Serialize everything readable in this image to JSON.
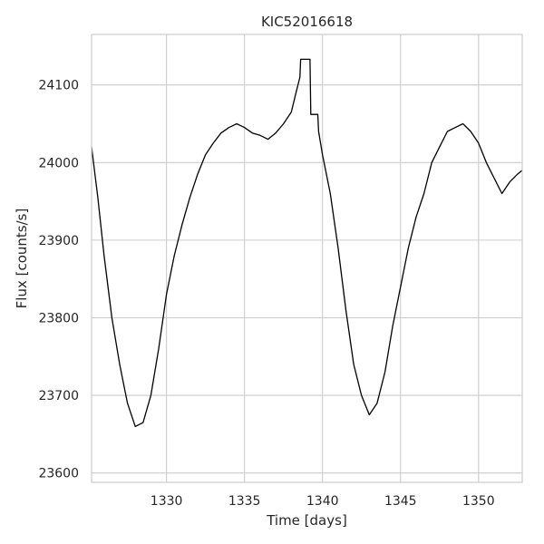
{
  "chart_data": {
    "type": "line",
    "title": "KIC52016618",
    "xlabel": "Time [days]",
    "ylabel": "Flux [counts/s]",
    "xlim": [
      1325.2,
      1352.8
    ],
    "ylim": [
      23588,
      24165
    ],
    "xticks": [
      1330,
      1335,
      1340,
      1345,
      1350
    ],
    "yticks": [
      23600,
      23700,
      23800,
      23900,
      24000,
      24100
    ],
    "grid": true,
    "legend": "none",
    "line_color": "#000000",
    "series": [
      {
        "x": [
          1325.2,
          1325.6,
          1326.0,
          1326.5,
          1327.0,
          1327.5,
          1328.0,
          1328.5,
          1329.0,
          1329.5,
          1330.0,
          1330.5,
          1331.0,
          1331.5,
          1332.0,
          1332.5,
          1333.0,
          1333.5,
          1334.0,
          1334.5,
          1335.0,
          1335.5,
          1336.0,
          1336.5,
          1337.0,
          1337.5,
          1338.0,
          1338.3,
          1338.55,
          1338.6,
          1339.0,
          1339.2,
          1339.25,
          1339.7,
          1339.75,
          1340.0,
          1340.5,
          1341.0,
          1341.5,
          1342.0,
          1342.5,
          1343.0,
          1343.5,
          1344.0,
          1344.5,
          1345.0,
          1345.5,
          1346.0,
          1346.5,
          1347.0,
          1347.5,
          1348.0,
          1348.5,
          1349.0,
          1349.5,
          1350.0,
          1350.5,
          1351.0,
          1351.5,
          1352.0,
          1352.5,
          1352.8
        ],
        "y": [
          24020,
          23955,
          23880,
          23800,
          23740,
          23690,
          23660,
          23665,
          23700,
          23760,
          23830,
          23880,
          23920,
          23955,
          23985,
          24010,
          24025,
          24038,
          24045,
          24050,
          24045,
          24038,
          24035,
          24030,
          24038,
          24050,
          24065,
          24090,
          24110,
          24133,
          24133,
          24133,
          24062,
          24062,
          24040,
          24010,
          23960,
          23890,
          23810,
          23740,
          23700,
          23675,
          23690,
          23730,
          23790,
          23840,
          23890,
          23930,
          23960,
          24000,
          24020,
          24040,
          24045,
          24050,
          24040,
          24025,
          24000,
          23980,
          23960,
          23975,
          23985,
          23990
        ]
      }
    ]
  }
}
